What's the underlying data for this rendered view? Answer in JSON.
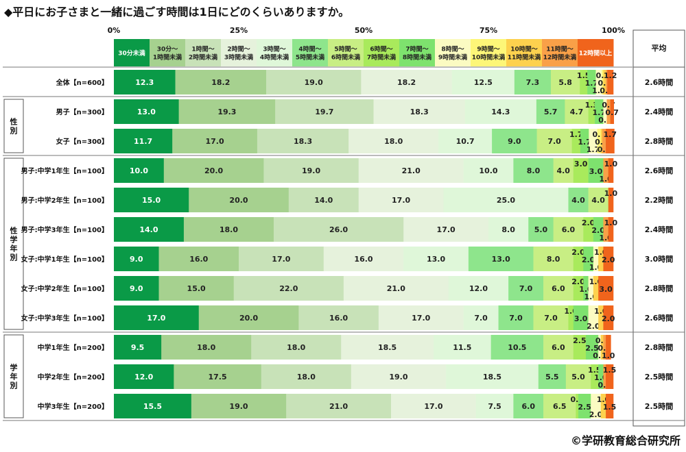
{
  "title": "◆平日にお子さまと一緒に過ごす時間は1日にどのくらいありますか。",
  "copyright": "©学研教育総合研究所",
  "chart_data": {
    "type": "bar",
    "orientation": "horizontal",
    "stacked": true,
    "percent_axis": [
      0,
      100
    ],
    "ticks": [
      "0%",
      "25%",
      "50%",
      "75%",
      "100%"
    ],
    "average_header": "平均",
    "categories": [
      {
        "label": [
          "30分未満"
        ],
        "color": "#0a9a47"
      },
      {
        "label": [
          "30分～",
          "1時間未満"
        ],
        "color": "#a6d18f"
      },
      {
        "label": [
          "1時間～",
          "2時間未満"
        ],
        "color": "#c8e2b8"
      },
      {
        "label": [
          "2時間～",
          "3時間未満"
        ],
        "color": "#e6f2dc"
      },
      {
        "label": [
          "3時間～",
          "4時間未満"
        ],
        "color": "#dff7d9"
      },
      {
        "label": [
          "4時間～",
          "5時間未満"
        ],
        "color": "#8ee58c"
      },
      {
        "label": [
          "5時間～",
          "6時間未満"
        ],
        "color": "#c8ee84"
      },
      {
        "label": [
          "6時間～",
          "7時間未満"
        ],
        "color": "#a9ea5c"
      },
      {
        "label": [
          "7時間～",
          "8時間未満"
        ],
        "color": "#7ee26e"
      },
      {
        "label": [
          "8時間～",
          "9時間未満"
        ],
        "color": "#fbfbc2"
      },
      {
        "label": [
          "9時間～",
          "10時間未満"
        ],
        "color": "#fdf678"
      },
      {
        "label": [
          "10時間～",
          "11時間未満"
        ],
        "color": "#fdd14e"
      },
      {
        "label": [
          "11時間～",
          "12時間未満"
        ],
        "color": "#f9a048"
      },
      {
        "label": [
          "12時間以上"
        ],
        "color": "#f0641c"
      }
    ],
    "groups": [
      {
        "label": "",
        "start": 0,
        "end": 0
      },
      {
        "label": "性別",
        "start": 1,
        "end": 2
      },
      {
        "label": "性学年別",
        "start": 3,
        "end": 8
      },
      {
        "label": "学年別",
        "start": 9,
        "end": 11
      }
    ],
    "rows": [
      {
        "label": "全体【n=600】",
        "values": [
          12.3,
          18.2,
          19.0,
          18.2,
          12.5,
          7.3,
          5.8,
          1.5,
          1.7,
          1.2,
          0.3,
          0.5,
          0.3,
          1.2
        ],
        "average": "2.6時間"
      },
      {
        "label": "男子【n=300】",
        "values": [
          13.0,
          19.3,
          19.7,
          18.3,
          14.3,
          5.7,
          4.7,
          1.3,
          1.7,
          0.7,
          0.0,
          0.0,
          0.7,
          0.7
        ],
        "average": "2.4時間"
      },
      {
        "label": "女子【n=300】",
        "values": [
          11.7,
          17.0,
          18.3,
          18.0,
          10.7,
          9.0,
          7.0,
          1.7,
          1.7,
          1.7,
          0.7,
          0.3,
          0.7,
          1.7
        ],
        "average": "2.8時間"
      },
      {
        "label": "男子:中学1年生【n=100】",
        "values": [
          10.0,
          20.0,
          19.0,
          21.0,
          10.0,
          8.0,
          4.0,
          3.0,
          3.0,
          0.0,
          0.0,
          0.0,
          1.0,
          1.0
        ],
        "average": "2.6時間"
      },
      {
        "label": "男子:中学2年生【n=100】",
        "values": [
          15.0,
          20.0,
          14.0,
          17.0,
          25.0,
          4.0,
          4.0,
          0.0,
          0.0,
          0.0,
          0.0,
          0.0,
          0.0,
          1.0
        ],
        "average": "2.2時間"
      },
      {
        "label": "男子:中学3年生【n=100】",
        "values": [
          14.0,
          18.0,
          26.0,
          17.0,
          8.0,
          5.0,
          6.0,
          2.0,
          2.0,
          0.0,
          0.0,
          0.0,
          1.0,
          1.0
        ],
        "average": "2.4時間"
      },
      {
        "label": "女子:中学1年生【n=100】",
        "values": [
          9.0,
          16.0,
          17.0,
          16.0,
          13.0,
          13.0,
          8.0,
          2.0,
          2.0,
          1.0,
          0.0,
          1.0,
          0.0,
          2.0
        ],
        "average": "3.0時間"
      },
      {
        "label": "女子:中学2年生【n=100】",
        "values": [
          9.0,
          15.0,
          22.0,
          21.0,
          12.0,
          7.0,
          6.0,
          2.0,
          1.0,
          1.0,
          0.0,
          1.0,
          0.0,
          3.0
        ],
        "average": "2.8時間"
      },
      {
        "label": "女子:中学3年生【n=100】",
        "values": [
          17.0,
          20.0,
          16.0,
          17.0,
          7.0,
          7.0,
          7.0,
          1.0,
          3.0,
          2.0,
          0.0,
          1.0,
          0.0,
          2.0
        ],
        "average": "2.6時間"
      },
      {
        "label": "中学1年生【n=200】",
        "values": [
          9.5,
          18.0,
          18.0,
          18.5,
          11.5,
          10.5,
          6.0,
          2.5,
          2.5,
          0.5,
          0.0,
          0.5,
          0.5,
          1.0
        ],
        "average": "2.8時間"
      },
      {
        "label": "中学2年生【n=200】",
        "values": [
          12.0,
          17.5,
          18.0,
          19.0,
          18.5,
          5.5,
          5.0,
          1.5,
          1.0,
          0.0,
          0.0,
          0.0,
          0.5,
          1.5
        ],
        "average": "2.5時間"
      },
      {
        "label": "中学3年生【n=200】",
        "values": [
          15.5,
          19.0,
          21.0,
          17.0,
          7.5,
          6.0,
          6.5,
          0.5,
          2.5,
          2.0,
          0.0,
          1.0,
          0.0,
          1.5
        ],
        "average": "2.5時間"
      }
    ]
  }
}
